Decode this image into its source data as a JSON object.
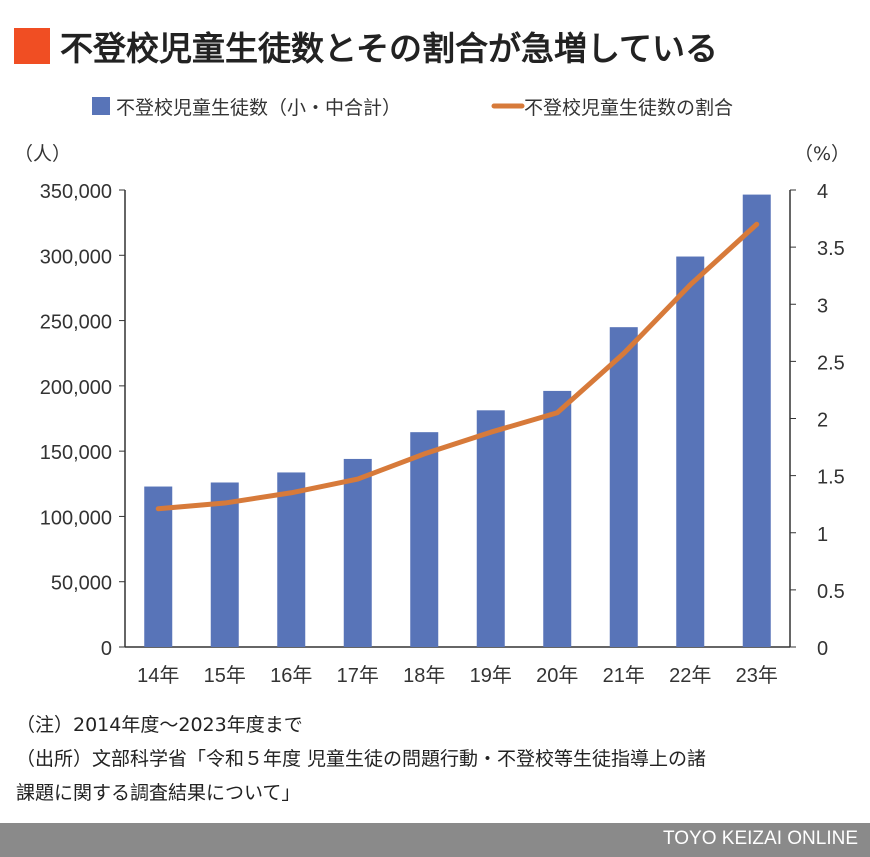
{
  "title": "不登校児童生徒数とその割合が急増している",
  "colors": {
    "bar": "#5874b8",
    "line": "#d77a3a",
    "accent": "#f04e23"
  },
  "chart_data": {
    "type": "bar+line",
    "categories": [
      "14年",
      "15年",
      "16年",
      "17年",
      "18年",
      "19年",
      "20年",
      "21年",
      "22年",
      "23年"
    ],
    "series": [
      {
        "name": "不登校児童生徒数（小・中合計）",
        "type": "bar",
        "axis": "left",
        "values": [
          122897,
          125991,
          133683,
          144031,
          164528,
          181272,
          196127,
          244940,
          299048,
          346482
        ]
      },
      {
        "name": "不登校児童生徒数の割合",
        "type": "line",
        "axis": "right",
        "values": [
          1.21,
          1.26,
          1.35,
          1.47,
          1.69,
          1.88,
          2.05,
          2.57,
          3.17,
          3.7
        ]
      }
    ],
    "left_axis": {
      "unit": "（人）",
      "ylim": [
        0,
        350000
      ],
      "ticks": [
        "0",
        "50,000",
        "100,000",
        "150,000",
        "200,000",
        "250,000",
        "300,000",
        "350,000"
      ]
    },
    "right_axis": {
      "unit": "（%）",
      "ylim": [
        0,
        4
      ],
      "ticks": [
        "0",
        "0.5",
        "1",
        "1.5",
        "2",
        "2.5",
        "3",
        "3.5",
        "4"
      ]
    },
    "grid": false,
    "legend": "top"
  },
  "notes": [
    "（注）2014年度〜2023年度まで",
    "（出所）文部科学省「令和５年度 児童生徒の問題行動・不登校等生徒指導上の諸",
    "課題に関する調査結果について」"
  ],
  "footer": "TOYO KEIZAI ONLINE"
}
